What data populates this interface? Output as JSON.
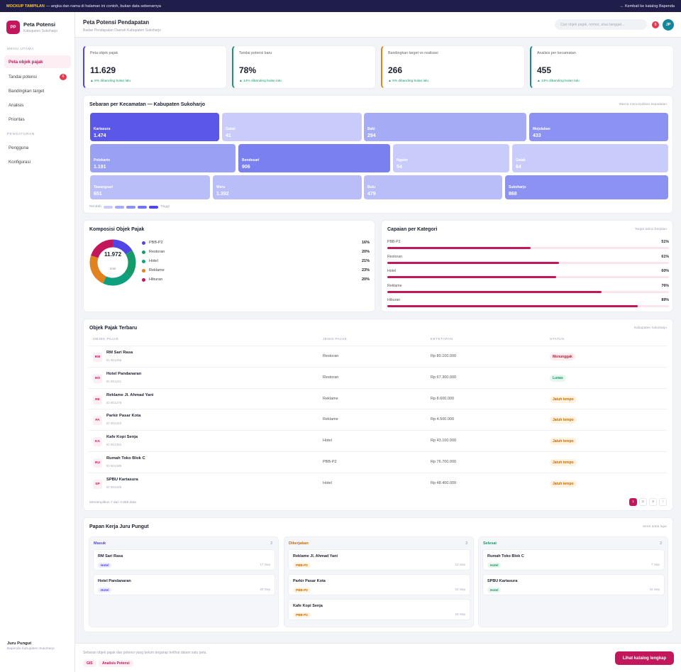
{
  "banner": {
    "tag": "MOCKUP TAMPILAN",
    "text": "— angka dan nama di halaman ini contoh, bukan data sebenarnya",
    "back": "← Kembali ke katalog Bapenda"
  },
  "brand": {
    "initials": "PP",
    "title": "Peta Potensi",
    "subtitle": "Kabupaten Sukoharjo"
  },
  "sidebar": {
    "section_main": "MENU UTAMA",
    "section_settings": "PENGATURAN",
    "items": [
      {
        "label": "Peta objek pajak",
        "active": true
      },
      {
        "label": "Tandai potensi",
        "badge": "6"
      },
      {
        "label": "Bandingkan target"
      },
      {
        "label": "Analisis"
      },
      {
        "label": "Prioritas"
      }
    ],
    "settings": [
      {
        "label": "Pengguna"
      },
      {
        "label": "Konfigurasi"
      }
    ],
    "user": {
      "name": "Juru Pungut",
      "unit": "Bapenda Kabupaten Sukoharjo"
    }
  },
  "header": {
    "title": "Peta Potensi Pendapatan",
    "subtitle": "Badan Pendapatan Daerah Kabupaten Sukoharjo",
    "search_placeholder": "Cari objek pajak, nomor, atau tanggal...",
    "notifications": "5",
    "avatar": "JP"
  },
  "kpis": [
    {
      "label": "Peta objek pajak",
      "value": "11.629",
      "delta": "▲ 8% dibanding bulan lalu",
      "color": "#4f46e5"
    },
    {
      "label": "Tandai potensi baru",
      "value": "78%",
      "delta": "▲ 14% dibanding bulan lalu",
      "color": "#159a6b"
    },
    {
      "label": "Bandingkan target vs realisasi",
      "value": "266",
      "delta": "▲ 5% dibanding bulan lalu",
      "color": "#e0821e"
    },
    {
      "label": "Analisis per kecamatan",
      "value": "455",
      "delta": "▲ 13% dibanding bulan lalu",
      "color": "#11899a"
    }
  ],
  "map": {
    "title": "Sebaran per Kecamatan — Kabupaten Sukoharjo",
    "note": "Warna menunjukkan kepadatan",
    "legend_low": "Rendah",
    "legend_high": "Tinggi",
    "districts": [
      {
        "name": "Kartasura",
        "value": "1.474",
        "color": "#5b57e8"
      },
      {
        "name": "Gatak",
        "value": "41",
        "color": "#c9ccfb"
      },
      {
        "name": "Baki",
        "value": "294",
        "color": "#a6abf5"
      },
      {
        "name": "Mojolaban",
        "value": "433",
        "color": "#8c92f1"
      },
      {
        "name": "Polokarto",
        "value": "1.191",
        "color": "#9aa0f3"
      },
      {
        "name": "Bendosari",
        "value": "906",
        "color": "#7a80ef"
      },
      {
        "name": "Nguter",
        "value": "54",
        "color": "#c9ccfb"
      },
      {
        "name": "Gatak",
        "value": "64",
        "color": "#c9ccfb"
      },
      {
        "name": "Tawangsari",
        "value": "651",
        "color": "#b9bdf8"
      },
      {
        "name": "Weru",
        "value": "1.392",
        "color": "#b9bdf8"
      },
      {
        "name": "Bulu",
        "value": "479",
        "color": "#b9bdf8"
      },
      {
        "name": "Sukoharjo",
        "value": "868",
        "color": "#8c92f1"
      }
    ]
  },
  "composition": {
    "title": "Komposisi Objek Pajak",
    "total": "11.972",
    "total_label": "total",
    "chart_data": {
      "type": "pie",
      "categories": [
        "PBB-P2",
        "Restoran",
        "Hotel",
        "Reklame",
        "Hiburan"
      ],
      "values": [
        16,
        20,
        21,
        23,
        20
      ],
      "colors": [
        "#4f46e5",
        "#159a6b",
        "#0e9f7e",
        "#e0821e",
        "#c2185b"
      ]
    },
    "labels": [
      "16%",
      "20%",
      "21%",
      "23%",
      "20%"
    ]
  },
  "achievement": {
    "title": "Capaian per Kategori",
    "note": "Target tahun berjalan",
    "chart_data": {
      "type": "bar",
      "categories": [
        "PBB-P2",
        "Restoran",
        "Hotel",
        "Reklame",
        "Hiburan"
      ],
      "values": [
        51,
        61,
        60,
        76,
        89
      ],
      "ylim": [
        0,
        100
      ]
    },
    "labels": [
      "51%",
      "61%",
      "60%",
      "76%",
      "89%"
    ]
  },
  "table": {
    "title": "Objek Pajak Terbaru",
    "note": "Kabupaten Sukoharjo",
    "headers": [
      "OBJEK PAJAK",
      "JENIS PAJAK",
      "KETETAPAN",
      "STATUS"
    ],
    "rows": [
      {
        "initials": "RM",
        "name": "RM Sari Rasa",
        "id": "ID 001256",
        "type": "Restoran",
        "amount": "Rp 80.100.000",
        "status": "Menunggak",
        "kind": "wait"
      },
      {
        "initials": "HO",
        "name": "Hotel Pandanaran",
        "id": "ID 001241",
        "type": "Restoran",
        "amount": "Rp 67.300.000",
        "status": "Lunas",
        "kind": "paid"
      },
      {
        "initials": "RE",
        "name": "Reklame Jl. Ahmad Yani",
        "id": "ID 001278",
        "type": "Reklame",
        "amount": "Rp 8.600.000",
        "status": "Jatuh tempo",
        "kind": "due"
      },
      {
        "initials": "PA",
        "name": "Parkir Pasar Kota",
        "id": "ID 001310",
        "type": "Reklame",
        "amount": "Rp 4.500.000",
        "status": "Jatuh tempo",
        "kind": "due"
      },
      {
        "initials": "KA",
        "name": "Kafe Kopi Senja",
        "id": "ID 001352",
        "type": "Hotel",
        "amount": "Rp 43.100.000",
        "status": "Jatuh tempo",
        "kind": "due"
      },
      {
        "initials": "RU",
        "name": "Rumah Toko Blok C",
        "id": "ID 001389",
        "type": "PBB-P2",
        "amount": "Rp 76.700.000",
        "status": "Jatuh tempo",
        "kind": "due"
      },
      {
        "initials": "SP",
        "name": "SPBU Kartasura",
        "id": "ID 001426",
        "type": "Hotel",
        "amount": "Rp 48.400.000",
        "status": "Jatuh tempo",
        "kind": "due"
      }
    ],
    "footer": "Menampilkan 7 dari 3.859 data",
    "pages": [
      "1",
      "2",
      "3",
      "›"
    ]
  },
  "board": {
    "title": "Papan Kerja Juru Pungut",
    "note": "Seret antar lajur",
    "columns": [
      {
        "name": "Masuk",
        "count": "2",
        "color": "#4f46e5",
        "cards": [
          {
            "name": "RM Sari Rasa",
            "tag": "Hotel",
            "date": "17 Sep",
            "tclass": "t-hotel"
          },
          {
            "name": "Hotel Pandanaran",
            "tag": "Hotel",
            "date": "20 Sep",
            "tclass": "t-hotel"
          }
        ]
      },
      {
        "name": "Dikerjakan",
        "count": "3",
        "color": "#c86a00",
        "cards": [
          {
            "name": "Reklame Jl. Ahmad Yani",
            "tag": "PBB-P2",
            "date": "13 Sep",
            "tclass": "t-pbb"
          },
          {
            "name": "Parkir Pasar Kota",
            "tag": "PBB-P2",
            "date": "22 Sep",
            "tclass": "t-pbb"
          },
          {
            "name": "Kafe Kopi Senja",
            "tag": "PBB-P2",
            "date": "16 Sep",
            "tclass": "t-pbb"
          }
        ]
      },
      {
        "name": "Selesai",
        "count": "2",
        "color": "#159a6b",
        "cards": [
          {
            "name": "Rumah Toko Blok C",
            "tag": "Hotel",
            "date": "7 Sep",
            "tclass": "t-hotel2"
          },
          {
            "name": "SPBU Kartasura",
            "tag": "Hotel",
            "date": "16 Sep",
            "tclass": "t-hotel2"
          }
        ]
      }
    ]
  },
  "footer": {
    "text": "Sebaran objek pajak dan potensi yang belum tergarap terlihat dalam satu peta.",
    "chips": [
      "GIS",
      "Analisis Potensi"
    ],
    "cta": "Lihat katalog lengkap"
  }
}
